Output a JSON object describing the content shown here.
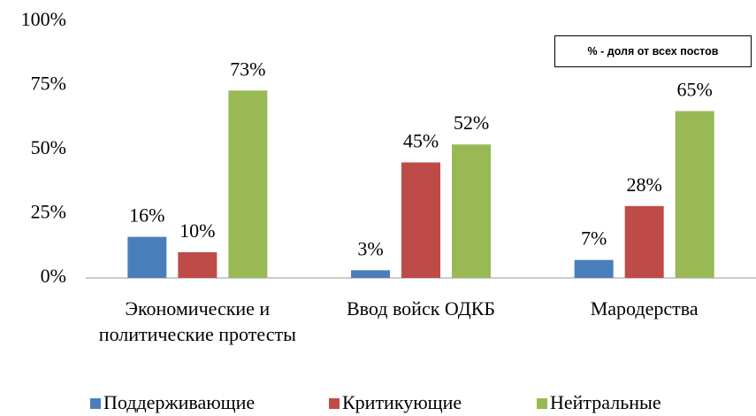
{
  "chart_data": {
    "type": "bar",
    "categories": [
      "Экономические и политические протесты",
      "Ввод войск ОДКБ",
      "Мародерства"
    ],
    "series": [
      {
        "name": "Поддерживающие",
        "color": "#4a7ebb",
        "values": [
          16,
          3,
          7
        ],
        "value_labels": [
          "16%",
          "3%",
          "7%"
        ]
      },
      {
        "name": "Критикующие",
        "color": "#be4b48",
        "values": [
          10,
          45,
          28
        ],
        "value_labels": [
          "10%",
          "45%",
          "28%"
        ]
      },
      {
        "name": "Нейтральные",
        "color": "#98b954",
        "values": [
          73,
          52,
          65
        ],
        "value_labels": [
          "73%",
          "52%",
          "65%"
        ]
      }
    ],
    "ylim": [
      0,
      100
    ],
    "yticks": [
      {
        "value": 0,
        "label": "0%"
      },
      {
        "value": 25,
        "label": "25%"
      },
      {
        "value": 50,
        "label": "50%"
      },
      {
        "value": 75,
        "label": "75%"
      },
      {
        "value": 100,
        "label": "100%"
      }
    ],
    "grid": false,
    "annotation": "% - доля от всех постов",
    "legend": "bottom"
  }
}
